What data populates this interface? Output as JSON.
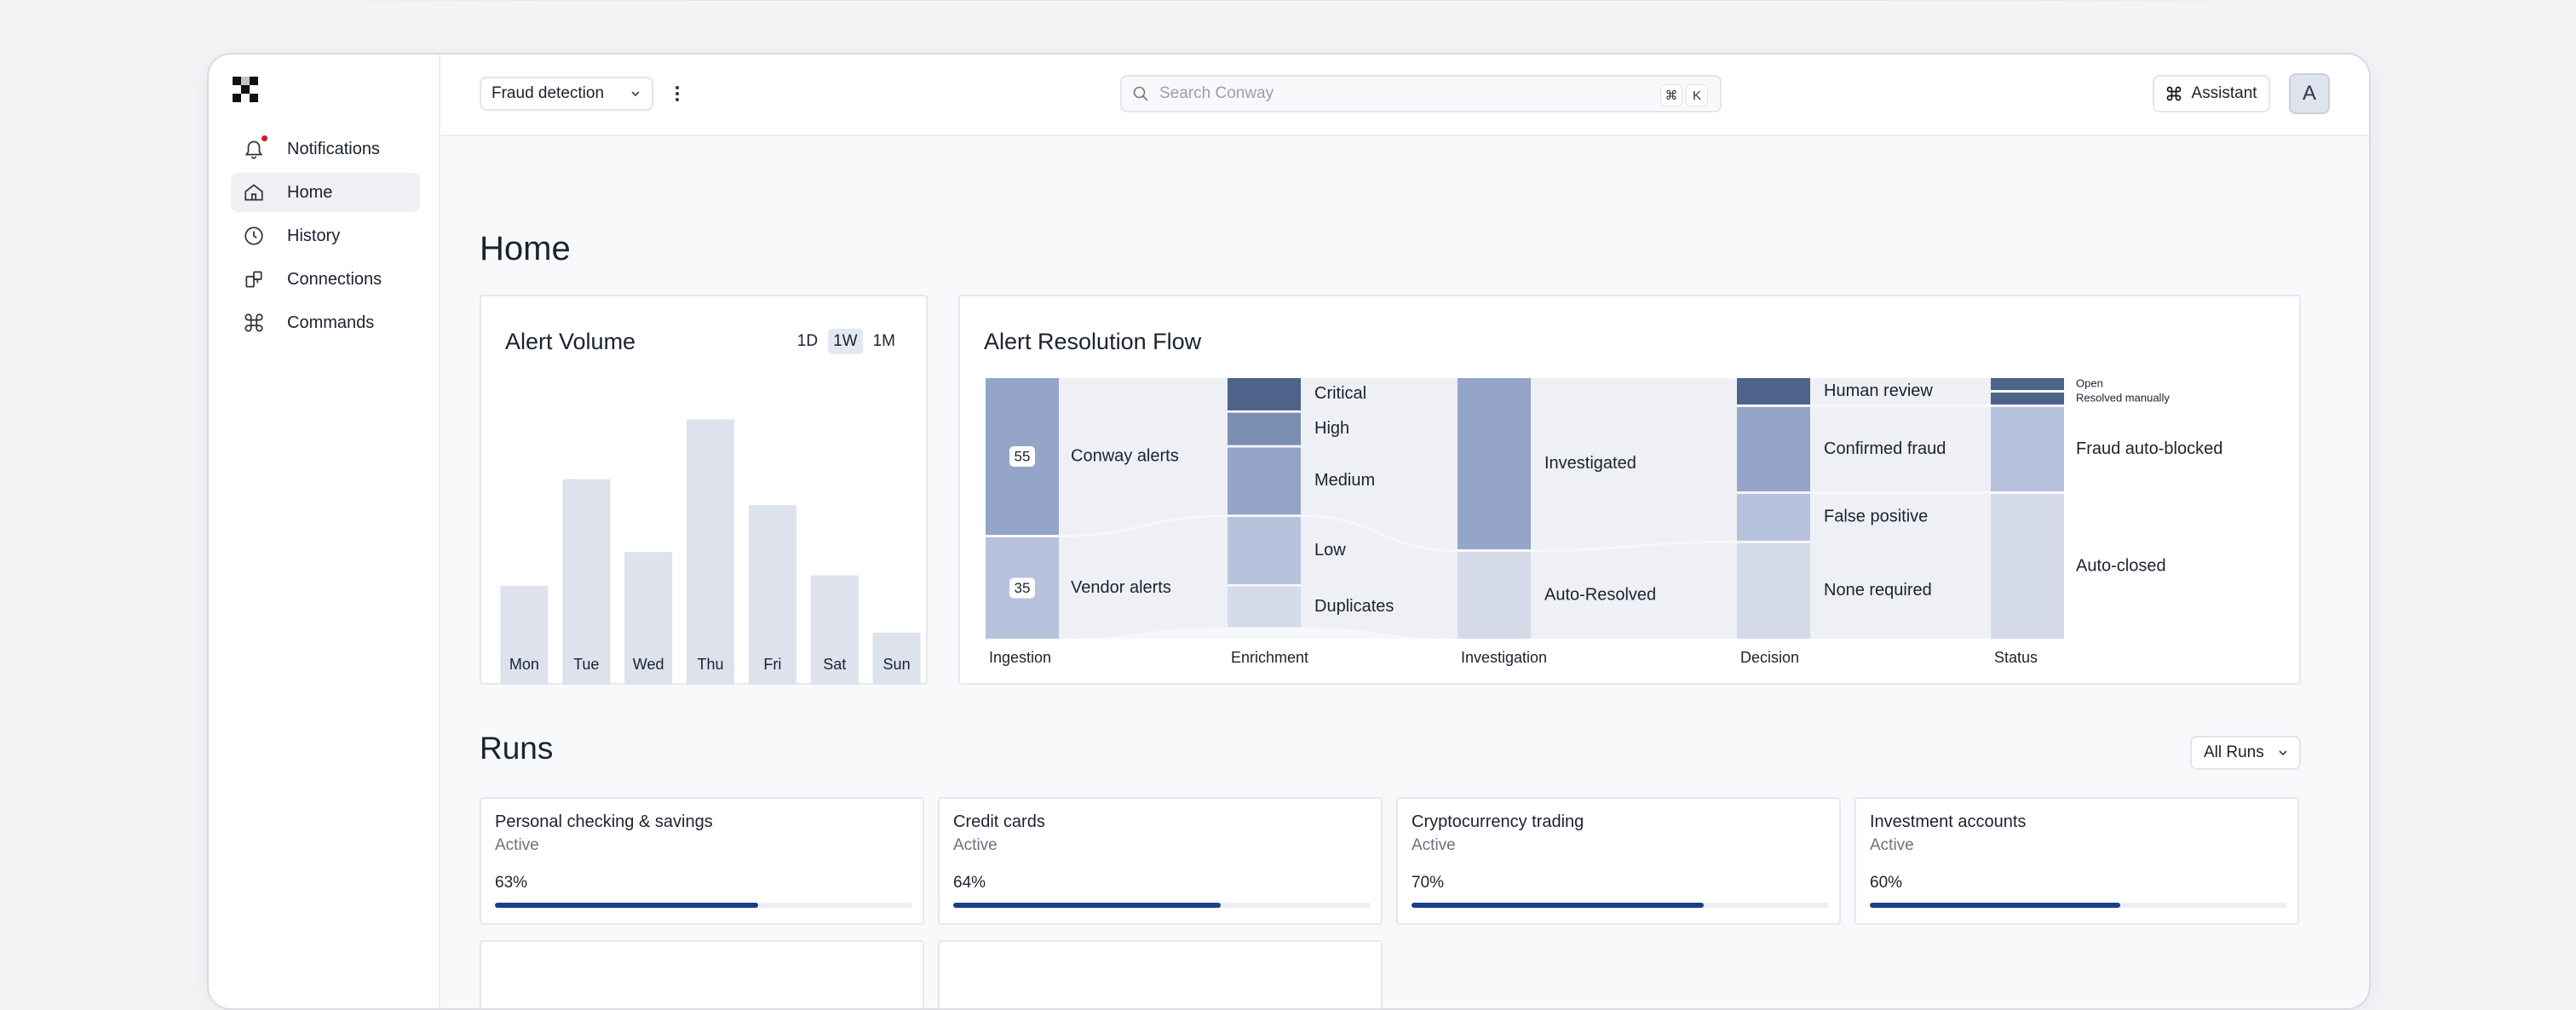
{
  "workspace": {
    "name": "Fraud detection"
  },
  "search": {
    "placeholder": "Search Conway",
    "key1": "⌘",
    "key2": "K"
  },
  "assistant": {
    "label": "Assistant"
  },
  "avatar": {
    "initial": "A"
  },
  "sidebar": {
    "items": [
      {
        "label": "Notifications",
        "icon": "bell-icon",
        "badge": true
      },
      {
        "label": "Home",
        "icon": "home-icon",
        "active": true
      },
      {
        "label": "History",
        "icon": "clock-icon"
      },
      {
        "label": "Connections",
        "icon": "connections-icon"
      },
      {
        "label": "Commands",
        "icon": "command-icon"
      }
    ]
  },
  "page": {
    "title": "Home"
  },
  "alert_volume": {
    "title": "Alert Volume",
    "ranges": [
      "1D",
      "1W",
      "1M"
    ],
    "active_range": "1W",
    "chart_data": {
      "type": "bar",
      "categories": [
        "Mon",
        "Tue",
        "Wed",
        "Thu",
        "Fri",
        "Sat",
        "Sun"
      ],
      "values": [
        38,
        79,
        51,
        102,
        69,
        42,
        20
      ],
      "ylim": [
        0,
        110
      ],
      "color": "#dde2ed"
    }
  },
  "flow": {
    "title": "Alert Resolution Flow",
    "stages": [
      "Ingestion",
      "Enrichment",
      "Investigation",
      "Decision",
      "Status"
    ],
    "ingestion": [
      {
        "label": "Conway alerts",
        "value": 55
      },
      {
        "label": "Vendor alerts",
        "value": 35
      }
    ],
    "enrichment": [
      {
        "label": "Critical",
        "value": 12
      },
      {
        "label": "High",
        "value": 12
      },
      {
        "label": "Medium",
        "value": 24
      },
      {
        "label": "Low",
        "value": 24
      },
      {
        "label": "Duplicates",
        "value": 14
      }
    ],
    "investigation": [
      {
        "label": "Investigated",
        "value": 60
      },
      {
        "label": "Auto-Resolved",
        "value": 30
      }
    ],
    "decision": [
      {
        "label": "Human review",
        "value": 10
      },
      {
        "label": "Confirmed fraud",
        "value": 30
      },
      {
        "label": "False positive",
        "value": 17
      },
      {
        "label": "None required",
        "value": 33
      }
    ],
    "status": [
      {
        "label": "Open",
        "value": 5
      },
      {
        "label": "Resolved manually",
        "value": 5
      },
      {
        "label": "Fraud auto-blocked",
        "value": 30
      },
      {
        "label": "Auto-closed",
        "value": 50
      }
    ],
    "colors": {
      "dark": "#4e6389",
      "mid": "#7b8db0",
      "base": "#95a5c9",
      "light": "#b7c2dc",
      "pale": "#d4dae8",
      "flow": "#eef0f6"
    }
  },
  "runs": {
    "title": "Runs",
    "filter": "All Runs",
    "items": [
      {
        "name": "Personal checking & savings",
        "status": "Active",
        "progress": 63
      },
      {
        "name": "Credit cards",
        "status": "Active",
        "progress": 64
      },
      {
        "name": "Cryptocurrency trading",
        "status": "Active",
        "progress": 70
      },
      {
        "name": "Investment accounts",
        "status": "Active",
        "progress": 60
      }
    ]
  }
}
